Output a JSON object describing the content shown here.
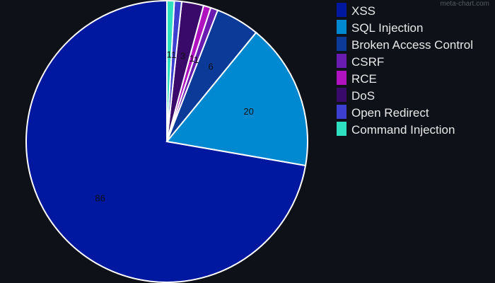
{
  "watermark": "meta-chart.com",
  "chart_data": {
    "type": "pie",
    "title": "",
    "categories": [
      "XSS",
      "SQL Injection",
      "Broken Access Control",
      "CSRF",
      "RCE",
      "DoS",
      "Open Redirect",
      "Command Injection"
    ],
    "values": [
      86,
      20,
      6,
      1,
      1,
      3,
      1,
      1
    ],
    "colors": [
      "#0017a0",
      "#0088d0",
      "#0b3a99",
      "#6a1bb0",
      "#b012bf",
      "#3a0a6a",
      "#3d3fd1",
      "#2fe0c0"
    ],
    "data_labels": [
      "86",
      "20",
      "6",
      "1",
      "1",
      "3",
      "1",
      "1"
    ],
    "legend": "right",
    "slice_border_color": "#ffffff"
  }
}
